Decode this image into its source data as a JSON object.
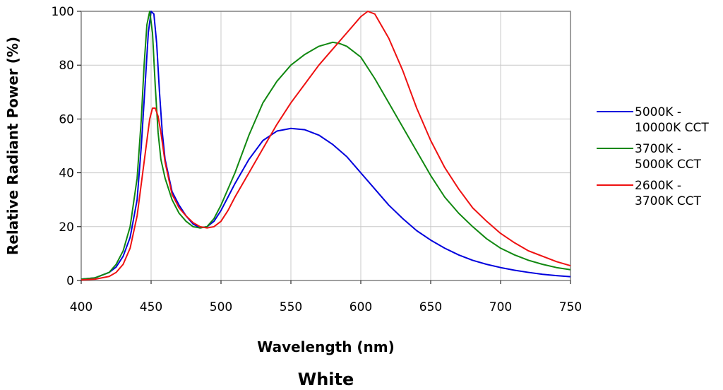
{
  "chart_data": {
    "type": "line",
    "title": "White",
    "xlabel": "Wavelength (nm)",
    "ylabel": "Relative Radiant Power (%)",
    "xlim": [
      400,
      750
    ],
    "ylim": [
      0,
      100
    ],
    "x_ticks": [
      "400",
      "450",
      "500",
      "550",
      "600",
      "650",
      "700",
      "750"
    ],
    "y_ticks": [
      "0",
      "20",
      "40",
      "60",
      "80",
      "100"
    ],
    "grid": "vertical",
    "legend_position": "right",
    "series": [
      {
        "name_lines": [
          "5000K -",
          "10000K CCT"
        ],
        "color": "#0000dd",
        "x": [
          400,
          410,
          420,
          425,
          430,
          435,
          440,
          443,
          446,
          448,
          450,
          452,
          454,
          456,
          458,
          460,
          465,
          470,
          475,
          480,
          485,
          490,
          495,
          500,
          505,
          510,
          520,
          530,
          540,
          550,
          560,
          570,
          580,
          590,
          600,
          610,
          620,
          630,
          640,
          650,
          660,
          670,
          680,
          690,
          700,
          710,
          720,
          730,
          740,
          750
        ],
        "y": [
          0.5,
          1,
          3,
          5,
          9,
          16,
          30,
          50,
          75,
          92,
          100,
          99,
          88,
          70,
          55,
          45,
          33,
          28,
          24,
          21,
          19.5,
          20,
          22,
          26,
          31,
          36,
          45,
          52,
          55.5,
          56.5,
          56,
          54,
          50.5,
          46,
          40,
          34,
          28,
          23,
          18.5,
          15,
          12,
          9.5,
          7.5,
          6,
          4.8,
          3.8,
          3,
          2.3,
          1.8,
          1.4
        ]
      },
      {
        "name_lines": [
          "3700K -",
          "5000K CCT"
        ],
        "color": "#118811",
        "x": [
          400,
          410,
          420,
          425,
          430,
          435,
          440,
          443,
          445,
          447,
          449,
          451,
          453,
          455,
          457,
          460,
          465,
          470,
          475,
          480,
          485,
          490,
          495,
          500,
          505,
          510,
          520,
          530,
          540,
          550,
          560,
          570,
          580,
          585,
          590,
          600,
          610,
          620,
          630,
          640,
          650,
          660,
          670,
          680,
          690,
          700,
          710,
          720,
          730,
          740,
          750
        ],
        "y": [
          0.5,
          1,
          3,
          6,
          11,
          20,
          38,
          60,
          80,
          95,
          100,
          92,
          72,
          55,
          45,
          38,
          30,
          25,
          22,
          20,
          19.5,
          20,
          23,
          28,
          34,
          40,
          54,
          66,
          74,
          80,
          84,
          87,
          88.5,
          88,
          87,
          83,
          75,
          66,
          57,
          48,
          39,
          31,
          25,
          20,
          15.5,
          12,
          9.5,
          7.5,
          6,
          4.8,
          4
        ]
      },
      {
        "name_lines": [
          "2600K -",
          "3700K CCT"
        ],
        "color": "#ee1111",
        "x": [
          400,
          410,
          420,
          425,
          430,
          435,
          440,
          444,
          447,
          449,
          451,
          453,
          455,
          457,
          460,
          465,
          470,
          475,
          480,
          485,
          490,
          495,
          500,
          505,
          510,
          520,
          530,
          540,
          550,
          560,
          570,
          580,
          590,
          600,
          605,
          610,
          620,
          630,
          640,
          650,
          660,
          670,
          680,
          690,
          700,
          710,
          720,
          730,
          740,
          750
        ],
        "y": [
          0.2,
          0.5,
          1.5,
          3,
          6,
          12,
          24,
          40,
          52,
          60,
          64,
          64,
          61,
          55,
          44,
          32,
          27,
          24,
          21.5,
          20,
          19.5,
          20,
          22,
          26,
          31,
          40,
          49,
          58,
          66,
          73,
          80,
          86,
          92,
          98,
          100,
          99,
          90,
          78,
          64,
          52,
          42,
          34,
          27,
          22,
          17.5,
          14,
          11,
          9,
          7,
          5.5
        ]
      }
    ]
  }
}
